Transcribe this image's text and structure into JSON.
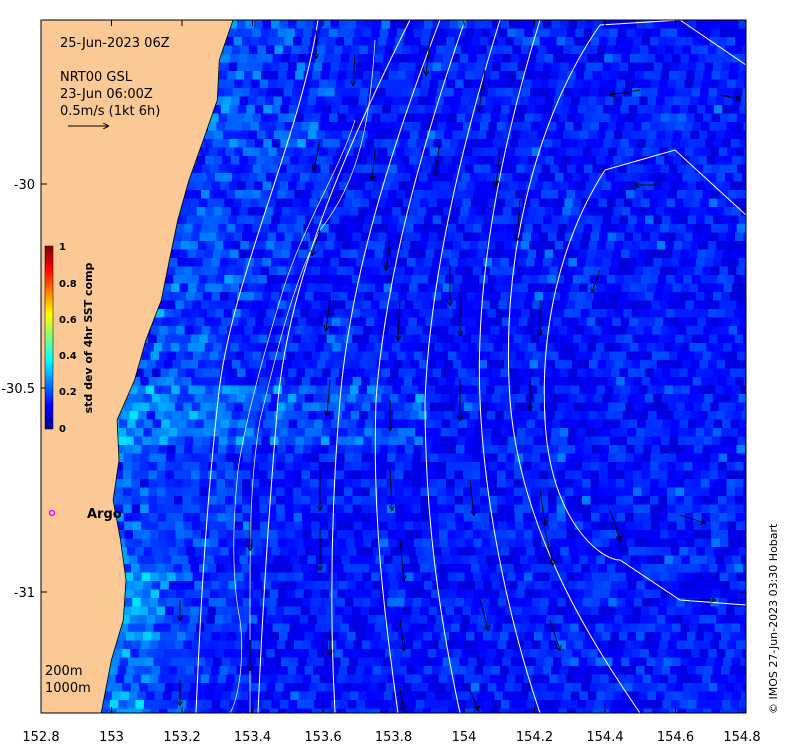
{
  "map": {
    "date_label": "25-Jun-2023 06Z",
    "product_line1": "NRT00 GSL",
    "product_line2": "23-Jun 06:00Z",
    "scale_vector_label": "0.5m/s (1kt 6h)",
    "credit": "© IMOS 27-Jun-2023 03:30 Hobart",
    "argo_label": "Argo",
    "depth_contour_labels": [
      "200m",
      "1000m"
    ],
    "colors": {
      "land": "#fbc995",
      "ocean_base": "#1030a8",
      "argo_marker": "#ff00ff",
      "contour": "#ffffff",
      "arrow": "#000000"
    }
  },
  "colorbar": {
    "title": "std dev of 4hr SST comp",
    "ticks": [
      "1",
      "0.8",
      "0.6",
      "0.4",
      "0.2",
      "0"
    ],
    "range": [
      0,
      1
    ],
    "colormap": "jet"
  },
  "axes": {
    "x_ticks": [
      "152.8",
      "153",
      "153.2",
      "153.4",
      "153.6",
      "153.8",
      "154",
      "154.2",
      "154.4",
      "154.6",
      "154.8"
    ],
    "y_ticks": [
      "-30",
      "-30.5",
      "-31"
    ],
    "x_range": [
      152.8,
      154.8
    ],
    "y_range": [
      -31.3,
      -29.6
    ]
  },
  "chart_data": {
    "type": "heatmap",
    "title": "25-Jun-2023 06Z",
    "xlabel": "",
    "ylabel": "",
    "xlim": [
      152.8,
      154.8
    ],
    "ylim": [
      -31.3,
      -29.6
    ],
    "colorbar_label": "std dev of 4hr SST comp",
    "colorbar_range": [
      0,
      1
    ],
    "x_ticks": [
      152.8,
      153,
      153.2,
      153.4,
      153.6,
      153.8,
      154,
      154.2,
      154.4,
      154.6,
      154.8
    ],
    "y_ticks": [
      -30,
      -30.5,
      -31
    ],
    "argo_float": {
      "lon": 152.83,
      "lat": -30.79,
      "label": "Argo"
    }
  }
}
